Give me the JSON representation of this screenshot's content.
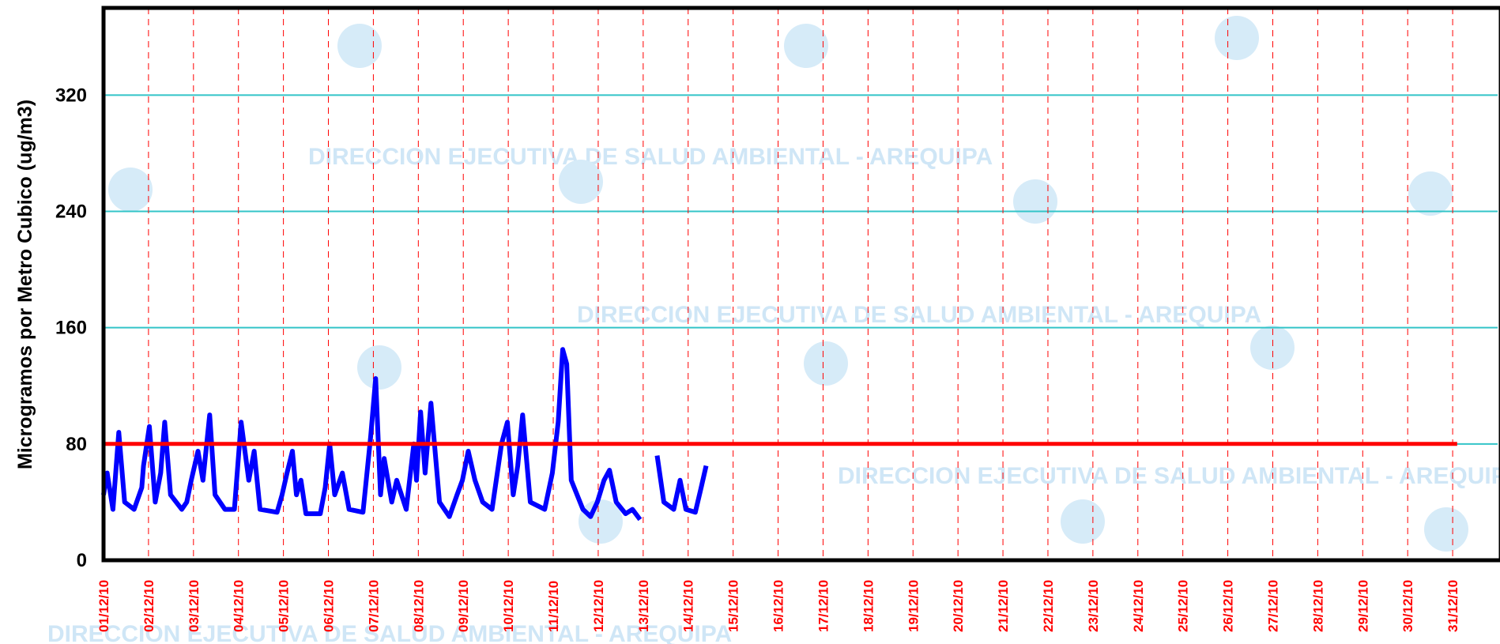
{
  "chart_data": {
    "type": "line",
    "ylabel": "Microgramos por Metro Cubico (ug/m3)",
    "watermark": "DIRECCION EJECUTIVA DE SALUD AMBIENTAL - AREQUIPA",
    "xlim": [
      1,
      32
    ],
    "ylim": [
      0,
      380
    ],
    "yticks": [
      0,
      80,
      160,
      240,
      320
    ],
    "xticks": [
      {
        "value": 1,
        "label": "01/12/10"
      },
      {
        "value": 2,
        "label": "02/12/10"
      },
      {
        "value": 3,
        "label": "03/12/10"
      },
      {
        "value": 4,
        "label": "04/12/10"
      },
      {
        "value": 5,
        "label": "05/12/10"
      },
      {
        "value": 6,
        "label": "06/12/10"
      },
      {
        "value": 7,
        "label": "07/12/10"
      },
      {
        "value": 8,
        "label": "08/12/10"
      },
      {
        "value": 9,
        "label": "09/12/10"
      },
      {
        "value": 10,
        "label": "10/12/10"
      },
      {
        "value": 11,
        "label": "11/12/10"
      },
      {
        "value": 12,
        "label": "12/12/10"
      },
      {
        "value": 13,
        "label": "13/12/10"
      },
      {
        "value": 14,
        "label": "14/12/10"
      },
      {
        "value": 15,
        "label": "15/12/10"
      },
      {
        "value": 16,
        "label": "16/12/10"
      },
      {
        "value": 17,
        "label": "17/12/10"
      },
      {
        "value": 18,
        "label": "18/12/10"
      },
      {
        "value": 19,
        "label": "19/12/10"
      },
      {
        "value": 20,
        "label": "20/12/10"
      },
      {
        "value": 21,
        "label": "21/12/10"
      },
      {
        "value": 22,
        "label": "22/12/10"
      },
      {
        "value": 23,
        "label": "23/12/10"
      },
      {
        "value": 24,
        "label": "24/12/10"
      },
      {
        "value": 25,
        "label": "25/12/10"
      },
      {
        "value": 26,
        "label": "26/12/10"
      },
      {
        "value": 27,
        "label": "27/12/10"
      },
      {
        "value": 28,
        "label": "28/12/10"
      },
      {
        "value": 29,
        "label": "29/12/10"
      },
      {
        "value": 30,
        "label": "30/12/10"
      },
      {
        "value": 31,
        "label": "31/12/10"
      }
    ],
    "grid": true,
    "grid_color": "#33c4c8",
    "xgrid_color": "#ff0000",
    "tick_label_color": "#ff0000",
    "series": [
      {
        "color": "#0000ff",
        "x": [
          1.0,
          1.08,
          1.21,
          1.34,
          1.47,
          1.68,
          1.85,
          1.89,
          2.02,
          2.15,
          2.27,
          2.36,
          2.49,
          2.74,
          2.85,
          2.95,
          3.1,
          3.21,
          3.36,
          3.48,
          3.7,
          3.91,
          4.06,
          4.23,
          4.35,
          4.48,
          4.86,
          4.97,
          5.08,
          5.2,
          5.29,
          5.39,
          5.5,
          5.82,
          5.93,
          6.03,
          6.14,
          6.31,
          6.46,
          6.77,
          6.94,
          7.05,
          7.16,
          7.24,
          7.41,
          7.52,
          7.73,
          7.9,
          7.96,
          8.05,
          8.15,
          8.28,
          8.47,
          8.69,
          8.86,
          8.98,
          9.11,
          9.26,
          9.43,
          9.64,
          9.85,
          9.98,
          10.11,
          10.21,
          10.32,
          10.49,
          10.81,
          10.98,
          11.11,
          11.21,
          11.3,
          11.4,
          11.66,
          11.83,
          11.98,
          12.13,
          12.25,
          12.4,
          12.61,
          12.76,
          12.93,
          13.1,
          13.31,
          13.46,
          13.68,
          13.82,
          13.95,
          14.16,
          14.29,
          14.4
        ],
        "values": [
          45,
          60,
          35,
          88,
          40,
          35,
          50,
          65,
          92,
          40,
          60,
          95,
          45,
          35,
          40,
          55,
          75,
          55,
          100,
          45,
          35,
          35,
          95,
          55,
          75,
          35,
          33,
          45,
          60,
          75,
          45,
          55,
          32,
          32,
          50,
          80,
          45,
          60,
          35,
          33,
          85,
          125,
          45,
          70,
          40,
          55,
          35,
          80,
          55,
          102,
          60,
          108,
          40,
          30,
          45,
          55,
          75,
          55,
          40,
          35,
          80,
          95,
          45,
          65,
          100,
          40,
          35,
          60,
          95,
          145,
          135,
          55,
          35,
          30,
          40,
          55,
          62,
          40,
          32,
          35,
          28,
          null,
          72,
          40,
          35,
          55,
          35,
          33,
          50,
          65
        ]
      },
      {
        "color": "#ff0000",
        "x": [
          1,
          31.1
        ],
        "values": [
          80,
          80
        ]
      }
    ]
  }
}
